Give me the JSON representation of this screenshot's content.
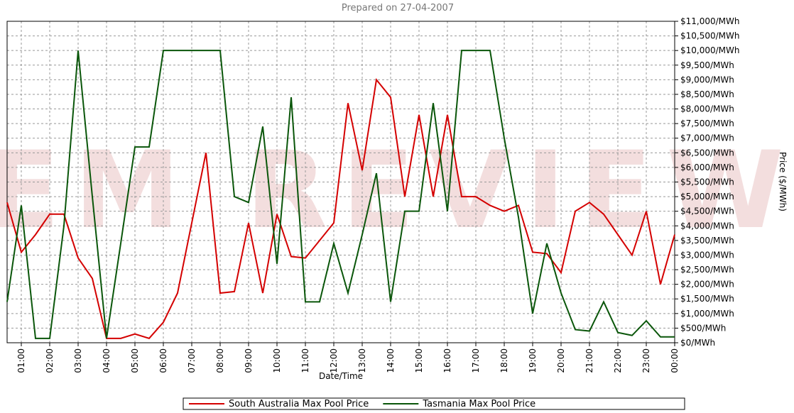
{
  "chart_data": {
    "type": "line",
    "title": "Prepared on 27-04-2007",
    "watermark": "NEM REVIEW",
    "x_label": "Date/Time",
    "y_label": "Price ($/MWh)",
    "grid": true,
    "legend": "bottom",
    "categories": [
      null,
      "01:00",
      null,
      "02:00",
      null,
      "03:00",
      null,
      "04:00",
      null,
      "05:00",
      null,
      "06:00",
      null,
      "07:00",
      null,
      "08:00",
      null,
      "09:00",
      null,
      "10:00",
      null,
      "11:00",
      null,
      "12:00",
      null,
      "13:00",
      null,
      "14:00",
      null,
      "15:00",
      null,
      "16:00",
      null,
      "17:00",
      null,
      "18:00",
      null,
      "19:00",
      null,
      "20:00",
      null,
      "21:00",
      null,
      "22:00",
      null,
      "23:00",
      null,
      "00:00"
    ],
    "series": [
      {
        "name": "South Australia Max  Pool Price",
        "color": "#d40000",
        "values": [
          4800,
          3100,
          3700,
          4400,
          4400,
          2900,
          2200,
          150,
          150,
          300,
          150,
          700,
          1700,
          4100,
          6500,
          1700,
          1750,
          4100,
          1700,
          4400,
          2950,
          2900,
          3500,
          4100,
          8200,
          5900,
          9000,
          8400,
          5000,
          7800,
          5000,
          7800,
          5000,
          5000,
          4700,
          4500,
          4700,
          3100,
          3050,
          2400,
          4500,
          4800,
          4400,
          3700,
          3000,
          4500,
          2000,
          3700
        ]
      },
      {
        "name": "Tasmania Max  Pool Price",
        "color": "#0a560a",
        "values": [
          1400,
          4700,
          150,
          150,
          4000,
          10000,
          5000,
          150,
          3400,
          6700,
          6700,
          10000,
          10000,
          10000,
          10000,
          10000,
          5000,
          4800,
          7400,
          2700,
          8400,
          1400,
          1400,
          3400,
          1700,
          3700,
          5800,
          1400,
          4500,
          4500,
          8200,
          4500,
          10000,
          10000,
          10000,
          7000,
          4300,
          1000,
          3400,
          1700,
          450,
          400,
          1400,
          350,
          250,
          750,
          200,
          200
        ]
      }
    ],
    "ylim": [
      0,
      11000
    ],
    "yticks": [
      {
        "value": 0,
        "label": "$0/MWh"
      },
      {
        "value": 500,
        "label": "$500/MWh"
      },
      {
        "value": 1000,
        "label": "$1,000/MWh"
      },
      {
        "value": 1500,
        "label": "$1,500/MWh"
      },
      {
        "value": 2000,
        "label": "$2,000/MWh"
      },
      {
        "value": 2500,
        "label": "$2,500/MWh"
      },
      {
        "value": 3000,
        "label": "$3,000/MWh"
      },
      {
        "value": 3500,
        "label": "$3,500/MWh"
      },
      {
        "value": 4000,
        "label": "$4,000/MWh"
      },
      {
        "value": 4500,
        "label": "$4,500/MWh"
      },
      {
        "value": 5000,
        "label": "$5,000/MWh"
      },
      {
        "value": 5500,
        "label": "$5,500/MWh"
      },
      {
        "value": 6000,
        "label": "$6,000/MWh"
      },
      {
        "value": 6500,
        "label": "$6,500/MWh"
      },
      {
        "value": 7000,
        "label": "$7,000/MWh"
      },
      {
        "value": 7500,
        "label": "$7,500/MWh"
      },
      {
        "value": 8000,
        "label": "$8,000/MWh"
      },
      {
        "value": 8500,
        "label": "$8,500/MWh"
      },
      {
        "value": 9000,
        "label": "$9,000/MWh"
      },
      {
        "value": 9500,
        "label": "$9,500/MWh"
      },
      {
        "value": 10000,
        "label": "$10,000/MWh"
      },
      {
        "value": 10500,
        "label": "$10,500/MWh"
      },
      {
        "value": 11000,
        "label": "$11,000/MWh"
      }
    ]
  }
}
